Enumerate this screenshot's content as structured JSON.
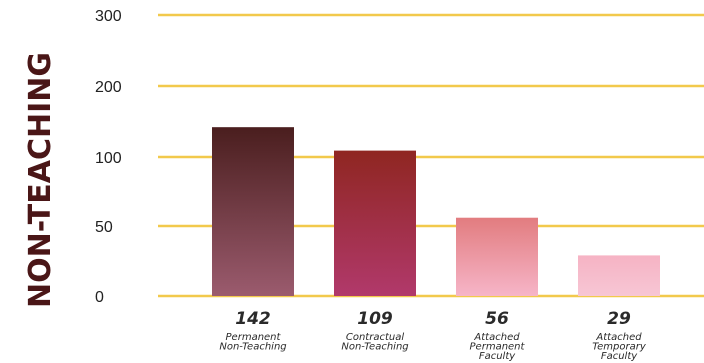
{
  "chart_data": {
    "type": "bar",
    "ylabel": "NON-TEACHING",
    "yticks": [
      "300",
      "200",
      "100",
      "50",
      "0"
    ],
    "categories": [
      [
        "Permanent",
        "Non-Teaching"
      ],
      [
        "Contractual",
        "Non-Teaching"
      ],
      [
        "Attached",
        "Permanent",
        "Faculty"
      ],
      [
        "Attached",
        "Temporary",
        "Faculty"
      ]
    ],
    "values": [
      142,
      109,
      56,
      29
    ],
    "value_labels": [
      "142",
      "109",
      "56",
      "29"
    ],
    "grid": true,
    "colors": {
      "grid": "#f2c94c",
      "bars": [
        {
          "top": "#4a1e1e",
          "bottom": "#9b5b6e"
        },
        {
          "top": "#8f2621",
          "bottom": "#b1396b"
        },
        {
          "top": "#e27c7f",
          "bottom": "#f6b5c8"
        },
        {
          "top": "#f6b3c4",
          "bottom": "#f7c6d4"
        }
      ],
      "ylabel": "#4a1617"
    }
  }
}
